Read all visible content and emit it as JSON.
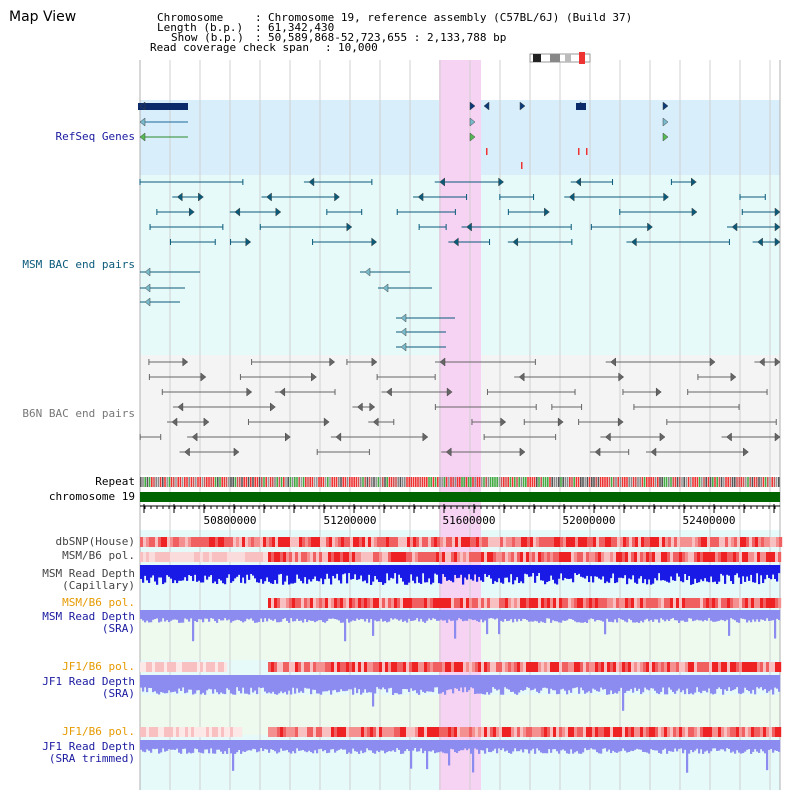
{
  "title": "Map View",
  "info": {
    "chromosome_label": "Chromosome",
    "chromosome_value": "Chromosome 19, reference assembly (C57BL/6J) (Build 37)",
    "length_label": "Length (b.p.)",
    "length_value": "61,342,430",
    "show_label": "Show (b.p.)",
    "show_value": "50,589,868-52,723,655 : 2,133,788 bp",
    "span_label": "Read coverage check span",
    "span_value": "10,000"
  },
  "tracks": {
    "refseq_genes": "RefSeq Genes",
    "msm_bac": "MSM BAC end pairs",
    "b6n_bac": "B6N BAC end pairs",
    "repeat": "Repeat",
    "chromosome": "chromosome 19",
    "dbsnp": "dbSNP(House)",
    "msm_b6_pol_1": "MSM/B6 pol.",
    "msm_read_depth_capillary_1": "MSM Read Depth",
    "msm_read_depth_capillary_2": "(Capillary)",
    "msm_b6_pol_2": "MSM/B6 pol.",
    "msm_read_depth_sra_1": "MSM Read Depth",
    "msm_read_depth_sra_2": "(SRA)",
    "jf1_b6_pol_1": "JF1/B6 pol.",
    "jf1_read_depth_sra_1": "JF1 Read Depth",
    "jf1_read_depth_sra_2": "(SRA)",
    "jf1_b6_pol_2": "JF1/B6 pol.",
    "jf1_read_depth_trim_1": "JF1 Read Depth",
    "jf1_read_depth_trim_2": "(SRA trimmed)"
  },
  "axis": {
    "ticks": [
      "50800000",
      "51200000",
      "51600000",
      "52000000",
      "52400000"
    ]
  },
  "colors": {
    "refseq_bg": "#d8eefa",
    "track_bg": "#e6fafa",
    "highlight": "#f6d2f3",
    "msm_label": "#0a5a7a",
    "b6n_label": "#777777",
    "blue_label": "#1a1aa0",
    "orange_label": "#e69a00",
    "chromosome_green": "#006400",
    "depth_dark": "#1a1ae6",
    "depth_light": "#8c8cf0",
    "pol_red": "#ee4444",
    "pol_pink": "#f8c0c0"
  }
}
